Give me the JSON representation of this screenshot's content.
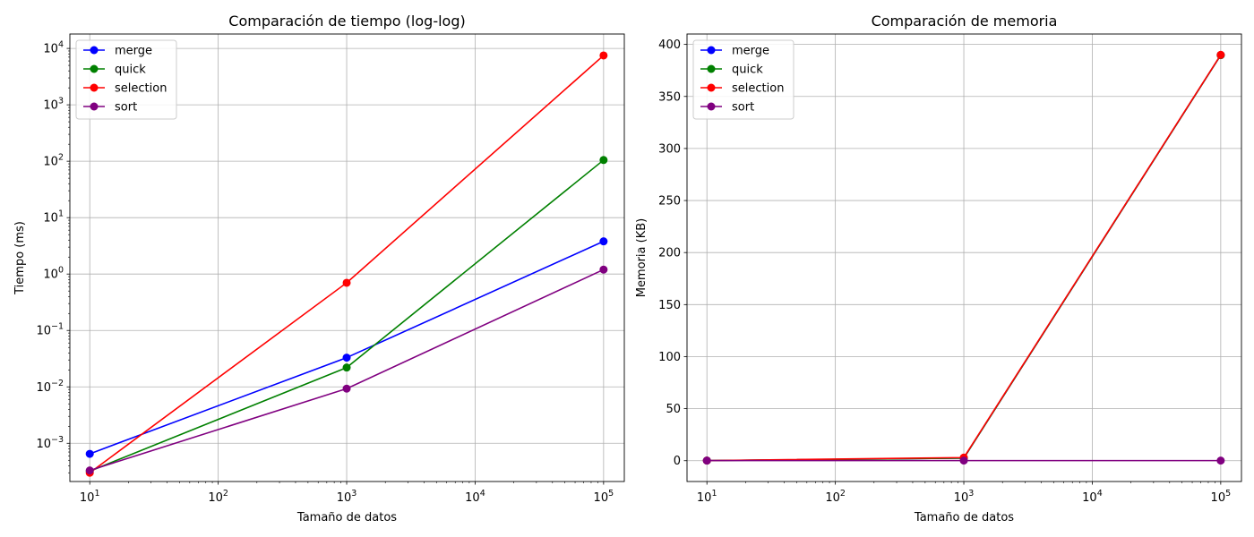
{
  "chart_data": [
    {
      "type": "line",
      "title": "Comparación de tiempo (log-log)",
      "xlabel": "Tamaño de datos",
      "ylabel": "Tiempo (ms)",
      "xscale": "log",
      "yscale": "log",
      "xlim": [
        7,
        145000
      ],
      "ylim": [
        0.00021,
        18000
      ],
      "x": [
        10,
        1000,
        100000
      ],
      "xticks": [
        {
          "value": 10,
          "base": "10",
          "exp": "1"
        },
        {
          "value": 100,
          "base": "10",
          "exp": "2"
        },
        {
          "value": 1000,
          "base": "10",
          "exp": "3"
        },
        {
          "value": 10000,
          "base": "10",
          "exp": "4"
        },
        {
          "value": 100000,
          "base": "10",
          "exp": "5"
        }
      ],
      "yticks": [
        {
          "value": 0.001,
          "base": "10",
          "exp": "−3"
        },
        {
          "value": 0.01,
          "base": "10",
          "exp": "−2"
        },
        {
          "value": 0.1,
          "base": "10",
          "exp": "−1"
        },
        {
          "value": 1,
          "base": "10",
          "exp": "0"
        },
        {
          "value": 10,
          "base": "10",
          "exp": "1"
        },
        {
          "value": 100,
          "base": "10",
          "exp": "2"
        },
        {
          "value": 1000,
          "base": "10",
          "exp": "3"
        },
        {
          "value": 10000,
          "base": "10",
          "exp": "4"
        }
      ],
      "grid": true,
      "legend_position": "upper-left",
      "series": [
        {
          "name": "merge",
          "color": "#0000ff",
          "values": [
            0.00065,
            0.033,
            3.8
          ]
        },
        {
          "name": "quick",
          "color": "#008000",
          "values": [
            0.00032,
            0.022,
            105
          ]
        },
        {
          "name": "selection",
          "color": "#ff0000",
          "values": [
            0.0003,
            0.7,
            7500
          ]
        },
        {
          "name": "sort",
          "color": "#800080",
          "values": [
            0.00033,
            0.0093,
            1.2
          ]
        }
      ]
    },
    {
      "type": "line",
      "title": "Comparación de memoria",
      "xlabel": "Tamaño de datos",
      "ylabel": "Memoria (KB)",
      "xscale": "log",
      "yscale": "linear",
      "xlim": [
        7,
        145000
      ],
      "ylim": [
        -20,
        410
      ],
      "x": [
        10,
        1000,
        100000
      ],
      "xticks": [
        {
          "value": 10,
          "base": "10",
          "exp": "1"
        },
        {
          "value": 100,
          "base": "10",
          "exp": "2"
        },
        {
          "value": 1000,
          "base": "10",
          "exp": "3"
        },
        {
          "value": 10000,
          "base": "10",
          "exp": "4"
        },
        {
          "value": 100000,
          "base": "10",
          "exp": "5"
        }
      ],
      "yticks": [
        {
          "value": 0,
          "label": "0"
        },
        {
          "value": 50,
          "label": "50"
        },
        {
          "value": 100,
          "label": "100"
        },
        {
          "value": 150,
          "label": "150"
        },
        {
          "value": 200,
          "label": "200"
        },
        {
          "value": 250,
          "label": "250"
        },
        {
          "value": 300,
          "label": "300"
        },
        {
          "value": 350,
          "label": "350"
        },
        {
          "value": 400,
          "label": "400"
        }
      ],
      "grid": true,
      "legend_position": "upper-left",
      "series": [
        {
          "name": "merge",
          "color": "#0000ff",
          "values": [
            0.1,
            2.5,
            389.7
          ]
        },
        {
          "name": "quick",
          "color": "#008000",
          "values": [
            0.1,
            2.5,
            389.7
          ]
        },
        {
          "name": "selection",
          "color": "#ff0000",
          "values": [
            0.1,
            3.0,
            390.0
          ]
        },
        {
          "name": "sort",
          "color": "#800080",
          "values": [
            0.1,
            0.1,
            0.1
          ]
        }
      ]
    }
  ]
}
